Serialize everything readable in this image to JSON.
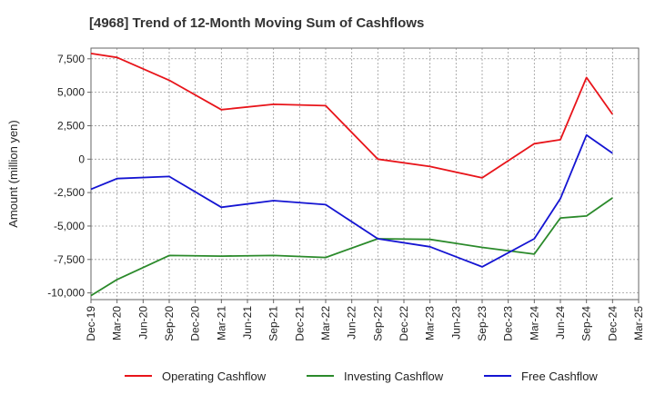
{
  "chart_data": {
    "type": "line",
    "title": "[4968]  Trend of 12-Month Moving Sum of Cashflows",
    "xlabel": "",
    "ylabel": "Amount (million yen)",
    "x_tick_labels": [
      "Dec-19",
      "Mar-20",
      "Jun-20",
      "Sep-20",
      "Dec-20",
      "Mar-21",
      "Jun-21",
      "Sep-21",
      "Dec-21",
      "Mar-22",
      "Jun-22",
      "Sep-22",
      "Dec-22",
      "Mar-23",
      "Jun-23",
      "Sep-23",
      "Dec-23",
      "Mar-24",
      "Jun-24",
      "Sep-24",
      "Dec-24",
      "Mar-25"
    ],
    "y_ticks": [
      7500,
      5000,
      2500,
      0,
      -2500,
      -5000,
      -7500,
      -10000
    ],
    "y_tick_labels": [
      "7,500",
      "5,000",
      "2,500",
      "0",
      "-2,500",
      "-5,000",
      "-7,500",
      "-10,000"
    ],
    "ylim": [
      -10500,
      8300
    ],
    "grid": true,
    "legend_position": "bottom",
    "x": [
      "Dec-19",
      "Mar-20",
      "Sep-20",
      "Mar-21",
      "Sep-21",
      "Mar-22",
      "Sep-22",
      "Mar-23",
      "Sep-23",
      "Mar-24",
      "Jun-24",
      "Sep-24",
      "Dec-24"
    ],
    "series": [
      {
        "name": "Operating Cashflow",
        "color": "#e8141a",
        "values": [
          7900,
          7600,
          5900,
          3700,
          4100,
          4000,
          0,
          -550,
          -1400,
          1150,
          1450,
          6100,
          3350
        ]
      },
      {
        "name": "Investing Cashflow",
        "color": "#2b8a2b",
        "values": [
          -10200,
          -9000,
          -7200,
          -7250,
          -7200,
          -7350,
          -5950,
          -6000,
          -6600,
          -7100,
          -4400,
          -4250,
          -2900
        ]
      },
      {
        "name": "Free Cashflow",
        "color": "#1414d2",
        "values": [
          -2250,
          -1450,
          -1300,
          -3600,
          -3100,
          -3400,
          -5950,
          -6550,
          -8050,
          -5950,
          -2950,
          1800,
          450
        ]
      }
    ]
  }
}
